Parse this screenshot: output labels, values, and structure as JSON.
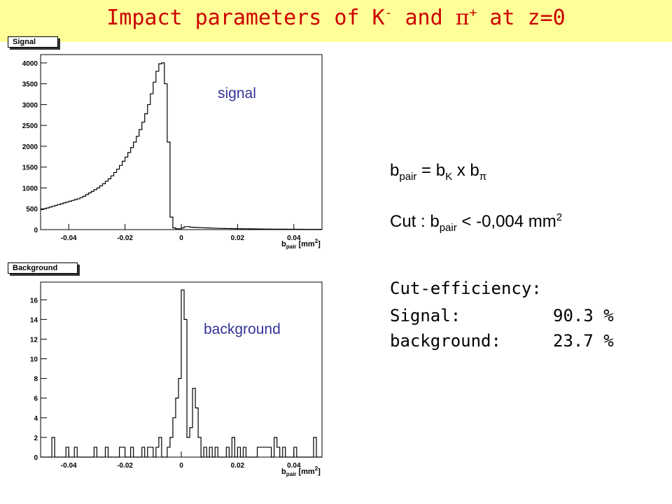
{
  "title": {
    "prefix": "Impact parameters of K",
    "k_charge": "-",
    "mid": " and ",
    "pi_symbol": "π",
    "pi_charge": "+",
    "suffix": " at z=0"
  },
  "colors": {
    "title_bg": "#ffff99",
    "title_text": "#cc0000",
    "overlay_text": "#333399",
    "histogram_line": "#000000"
  },
  "formula": {
    "bpair_b": "b",
    "bpair_sub": "pair",
    "eq": " = b",
    "k_sub": "K",
    "times": " x b",
    "pi_sub": "π",
    "cut_prefix": "Cut : b",
    "cut_sub": "pair",
    "cut_value": " < -0,004 mm",
    "cut_sup": "2"
  },
  "efficiency": {
    "heading": "Cut-efficiency:",
    "rows": [
      {
        "label": "Signal:",
        "value": "90.3 %"
      },
      {
        "label": "background:",
        "value": "23.7 %"
      }
    ]
  },
  "chart_data": [
    {
      "type": "histogram",
      "tab_label": "Signal",
      "overlay_label": "signal",
      "xlabel_b": "b",
      "xlabel_sub": "pair",
      "xlabel_unit": " [mm",
      "xlabel_sup": "2",
      "xlabel_close": "]",
      "xlim": [
        -0.05,
        0.05
      ],
      "ylim": [
        0,
        4200
      ],
      "xticks": [
        -0.04,
        -0.02,
        0,
        0.02,
        0.04
      ],
      "xtick_labels": [
        "-0.04",
        "-0.02",
        "0",
        "0.02",
        "0.04"
      ],
      "yticks": [
        0,
        500,
        1000,
        1500,
        2000,
        2500,
        3000,
        3500,
        4000
      ],
      "ytick_labels": [
        "0",
        "500",
        "1000",
        "1500",
        "2000",
        "2500",
        "3000",
        "3500",
        "4000"
      ],
      "bin_start": -0.05,
      "bin_width": 0.001,
      "counts": [
        480,
        500,
        520,
        540,
        560,
        580,
        600,
        620,
        640,
        660,
        680,
        700,
        720,
        740,
        770,
        800,
        840,
        880,
        920,
        960,
        1000,
        1050,
        1100,
        1160,
        1220,
        1290,
        1370,
        1450,
        1540,
        1640,
        1740,
        1850,
        1970,
        2100,
        2240,
        2400,
        2580,
        2780,
        3000,
        3260,
        3540,
        3800,
        3980,
        4000,
        3500,
        2100,
        300,
        40,
        20,
        20,
        40,
        70,
        70,
        60,
        55,
        50,
        48,
        45,
        42,
        40,
        38,
        35,
        33,
        30,
        28,
        27,
        26,
        25,
        24,
        23,
        22,
        21,
        20,
        20,
        19,
        18,
        17,
        16,
        15,
        14,
        14,
        13,
        12,
        12,
        11,
        11,
        10,
        10,
        9,
        9,
        8,
        8,
        8,
        7,
        7,
        7,
        6,
        6,
        6,
        6
      ]
    },
    {
      "type": "histogram",
      "tab_label": "Background",
      "overlay_label": "background",
      "xlabel_b": "b",
      "xlabel_sub": "pair",
      "xlabel_unit": " [mm",
      "xlabel_sup": "2",
      "xlabel_close": "]",
      "xlim": [
        -0.05,
        0.05
      ],
      "ylim": [
        0,
        17.8
      ],
      "xticks": [
        -0.04,
        -0.02,
        0,
        0.02,
        0.04
      ],
      "xtick_labels": [
        "-0.04",
        "-0.02",
        "0",
        "0.02",
        "0.04"
      ],
      "yticks": [
        0,
        2,
        4,
        6,
        8,
        10,
        12,
        14,
        16
      ],
      "ytick_labels": [
        "0",
        "2",
        "4",
        "6",
        "8",
        "10",
        "12",
        "14",
        "16"
      ],
      "bin_start": -0.05,
      "bin_width": 0.001,
      "counts": [
        0,
        0,
        0,
        0,
        2,
        0,
        0,
        0,
        0,
        1,
        0,
        0,
        1,
        0,
        0,
        0,
        0,
        0,
        0,
        1,
        0,
        0,
        0,
        1,
        0,
        0,
        0,
        0,
        1,
        1,
        0,
        0,
        1,
        0,
        0,
        0,
        1,
        0,
        1,
        1,
        0,
        1,
        2,
        0,
        0,
        1,
        2,
        4,
        6,
        8,
        17,
        14,
        2,
        3,
        7,
        5,
        2,
        0,
        1,
        0,
        1,
        0,
        1,
        0,
        0,
        0,
        1,
        0,
        2,
        0,
        1,
        0,
        1,
        0,
        0,
        0,
        0,
        1,
        1,
        1,
        1,
        1,
        0,
        2,
        1,
        0,
        1,
        0,
        0,
        0,
        1,
        0,
        0,
        0,
        0,
        0,
        0,
        2,
        0,
        0
      ]
    }
  ]
}
